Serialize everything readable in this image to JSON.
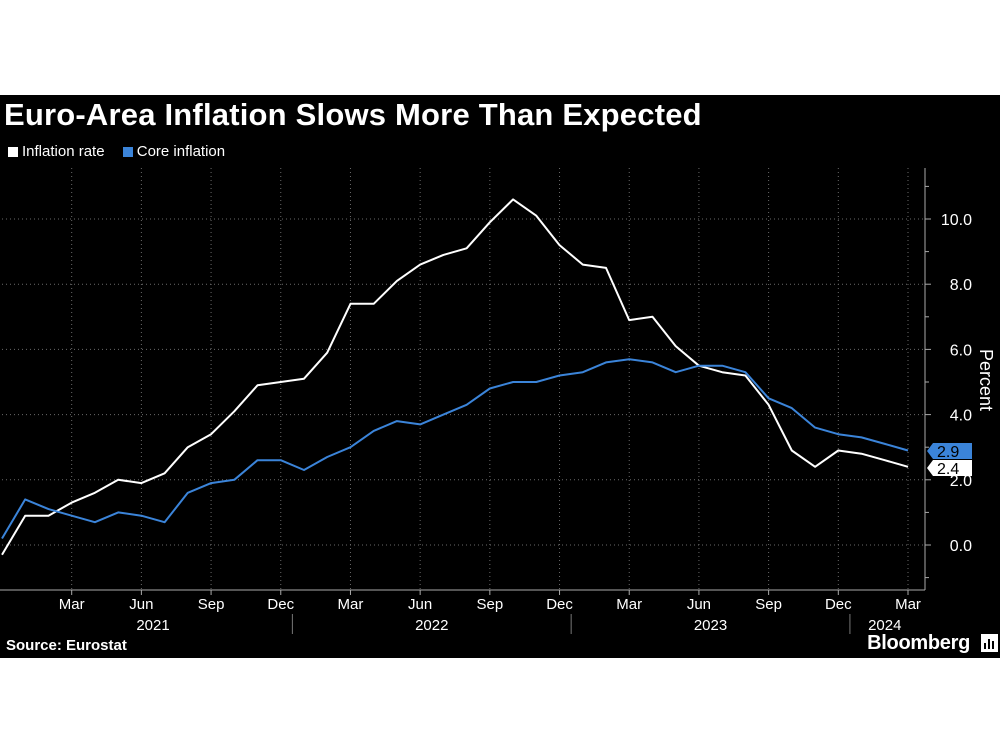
{
  "title": "Euro-Area Inflation Slows More Than Expected",
  "legend": [
    {
      "label": "Inflation rate",
      "color": "#ffffff"
    },
    {
      "label": "Core inflation",
      "color": "#3b84d9"
    }
  ],
  "source": "Source: Eurostat",
  "brand": "Bloomberg",
  "chart_data": {
    "type": "line",
    "title": "Euro-Area Inflation Slows More Than Expected",
    "xlabel": "",
    "ylabel": "Percent",
    "ylim": [
      -1.2,
      11.5
    ],
    "yticks": [
      0.0,
      2.0,
      4.0,
      6.0,
      8.0,
      10.0
    ],
    "ytick_labels": [
      "0.0",
      "2.0",
      "4.0",
      "6.0",
      "8.0",
      "10.0"
    ],
    "x": [
      "2020-12",
      "2021-01",
      "2021-02",
      "2021-03",
      "2021-04",
      "2021-05",
      "2021-06",
      "2021-07",
      "2021-08",
      "2021-09",
      "2021-10",
      "2021-11",
      "2021-12",
      "2022-01",
      "2022-02",
      "2022-03",
      "2022-04",
      "2022-05",
      "2022-06",
      "2022-07",
      "2022-08",
      "2022-09",
      "2022-10",
      "2022-11",
      "2022-12",
      "2023-01",
      "2023-02",
      "2023-03",
      "2023-04",
      "2023-05",
      "2023-06",
      "2023-07",
      "2023-08",
      "2023-09",
      "2023-10",
      "2023-11",
      "2023-12",
      "2024-01",
      "2024-02",
      "2024-03"
    ],
    "month_ticks": [
      {
        "label": "Mar",
        "index": 3
      },
      {
        "label": "Jun",
        "index": 6
      },
      {
        "label": "Sep",
        "index": 9
      },
      {
        "label": "Dec",
        "index": 12
      },
      {
        "label": "Mar",
        "index": 15
      },
      {
        "label": "Jun",
        "index": 18
      },
      {
        "label": "Sep",
        "index": 21
      },
      {
        "label": "Dec",
        "index": 24
      },
      {
        "label": "Mar",
        "index": 27
      },
      {
        "label": "Jun",
        "index": 30
      },
      {
        "label": "Sep",
        "index": 33
      },
      {
        "label": "Dec",
        "index": 36
      },
      {
        "label": "Mar",
        "index": 39
      }
    ],
    "year_labels": [
      {
        "label": "2021",
        "from": 0.5,
        "to": 12.5
      },
      {
        "label": "2022",
        "from": 12.5,
        "to": 24.5
      },
      {
        "label": "2023",
        "from": 24.5,
        "to": 36.5
      },
      {
        "label": "2024",
        "from": 36.5,
        "to": 39.5
      }
    ],
    "year_separators": [
      12.5,
      24.5,
      36.5
    ],
    "series": [
      {
        "name": "Inflation rate",
        "color": "#ffffff",
        "last_label": "2.4",
        "values": [
          -0.3,
          0.9,
          0.9,
          1.3,
          1.6,
          2.0,
          1.9,
          2.2,
          3.0,
          3.4,
          4.1,
          4.9,
          5.0,
          5.1,
          5.9,
          7.4,
          7.4,
          8.1,
          8.6,
          8.9,
          9.1,
          9.9,
          10.6,
          10.1,
          9.2,
          8.6,
          8.5,
          6.9,
          7.0,
          6.1,
          5.5,
          5.3,
          5.2,
          4.3,
          2.9,
          2.4,
          2.9,
          2.8,
          2.6,
          2.4
        ]
      },
      {
        "name": "Core inflation",
        "color": "#3b84d9",
        "last_label": "2.9",
        "values": [
          0.2,
          1.4,
          1.1,
          0.9,
          0.7,
          1.0,
          0.9,
          0.7,
          1.6,
          1.9,
          2.0,
          2.6,
          2.6,
          2.3,
          2.7,
          3.0,
          3.5,
          3.8,
          3.7,
          4.0,
          4.3,
          4.8,
          5.0,
          5.0,
          5.2,
          5.3,
          5.6,
          5.7,
          5.6,
          5.3,
          5.5,
          5.5,
          5.3,
          4.5,
          4.2,
          3.6,
          3.4,
          3.3,
          3.1,
          2.9
        ]
      }
    ]
  }
}
